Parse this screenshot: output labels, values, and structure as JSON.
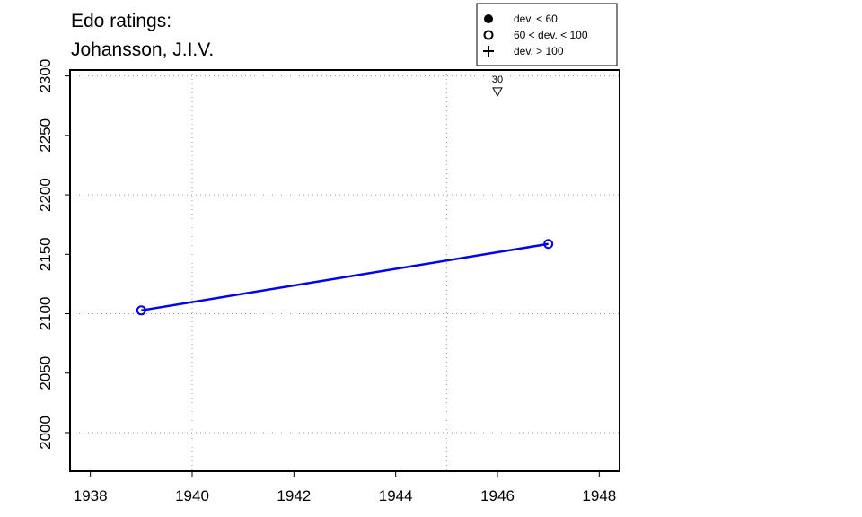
{
  "chart_data": {
    "type": "line",
    "title": [
      "Edo ratings:",
      "Johansson, J.I.V."
    ],
    "x": [
      1939,
      1947
    ],
    "series": [
      {
        "color": "#0000ee",
        "marker": "open-circle",
        "values": [
          2102.8,
          2158.7
        ]
      }
    ],
    "xlim": [
      1937.6,
      1948.4
    ],
    "ylim": [
      1967.5,
      2305
    ],
    "xticks": [
      1938,
      1940,
      1942,
      1944,
      1946,
      1948
    ],
    "yticks": [
      2000,
      2050,
      2100,
      2150,
      2200,
      2250,
      2300
    ],
    "xgrid": [
      1940,
      1945
    ],
    "ygrid": [
      2000,
      2100,
      2200,
      2300
    ],
    "annotations": [
      {
        "x": 1946,
        "y": 2287,
        "label": "30"
      }
    ],
    "legend": [
      {
        "label": "dev. < 60",
        "symbol": "filled-circle"
      },
      {
        "label": "60 < dev. < 100",
        "symbol": "open-circle"
      },
      {
        "label": "dev. > 100",
        "symbol": "plus"
      }
    ]
  }
}
